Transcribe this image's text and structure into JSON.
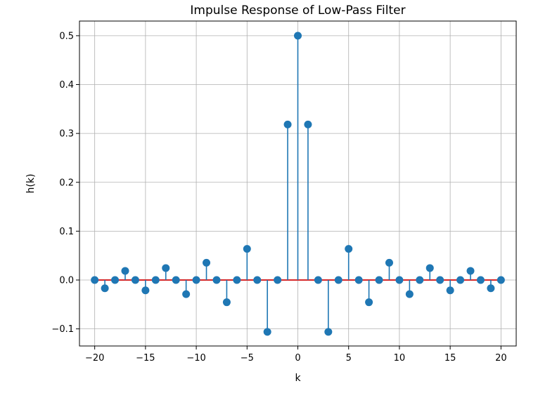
{
  "chart_data": {
    "type": "stem",
    "title": "Impulse Response of Low-Pass Filter",
    "xlabel": "k",
    "ylabel": "h(k)",
    "xlim": [
      -21.5,
      21.5
    ],
    "ylim": [
      -0.135,
      0.53
    ],
    "xticks": [
      -20,
      -15,
      -10,
      -5,
      0,
      5,
      10,
      15,
      20
    ],
    "xtick_labels": [
      "−20",
      "−15",
      "−10",
      "−5",
      "0",
      "5",
      "10",
      "15",
      "20"
    ],
    "yticks": [
      -0.1,
      0.0,
      0.1,
      0.2,
      0.3,
      0.4,
      0.5
    ],
    "ytick_labels": [
      "−0.1",
      "0.0",
      "0.1",
      "0.2",
      "0.3",
      "0.4",
      "0.5"
    ],
    "grid": true,
    "colors": {
      "stem": "#1f77b4",
      "baseline": "#d62728"
    },
    "x": [
      -20,
      -19,
      -18,
      -17,
      -16,
      -15,
      -14,
      -13,
      -12,
      -11,
      -10,
      -9,
      -8,
      -7,
      -6,
      -5,
      -4,
      -3,
      -2,
      -1,
      0,
      1,
      2,
      3,
      4,
      5,
      6,
      7,
      8,
      9,
      10,
      11,
      12,
      13,
      14,
      15,
      16,
      17,
      18,
      19,
      20
    ],
    "y": [
      0.0,
      -0.0168,
      0.0,
      0.0187,
      0.0,
      -0.0212,
      0.0,
      0.0245,
      0.0,
      -0.0289,
      0.0,
      0.0354,
      0.0,
      -0.0455,
      0.0,
      0.0637,
      0.0,
      -0.1061,
      0.0,
      0.3183,
      0.5,
      0.3183,
      0.0,
      -0.1061,
      0.0,
      0.0637,
      0.0,
      -0.0455,
      0.0,
      0.0354,
      0.0,
      -0.0289,
      0.0,
      0.0245,
      0.0,
      -0.0212,
      0.0,
      0.0187,
      0.0,
      -0.0168,
      0.0
    ]
  }
}
